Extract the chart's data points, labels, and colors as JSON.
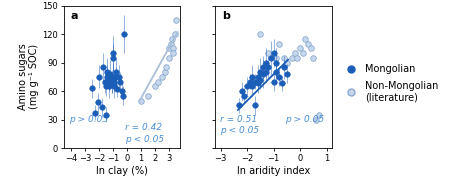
{
  "panel_a": {
    "mongolian_x": [
      -2.5,
      -2.3,
      -2.1,
      -2.0,
      -1.8,
      -1.7,
      -1.6,
      -1.5,
      -1.5,
      -1.4,
      -1.4,
      -1.3,
      -1.3,
      -1.2,
      -1.2,
      -1.1,
      -1.1,
      -1.0,
      -1.0,
      -1.0,
      -0.9,
      -0.9,
      -0.8,
      -0.8,
      -0.7,
      -0.6,
      -0.5,
      -0.4,
      -0.3,
      -0.2
    ],
    "mongolian_y": [
      63,
      37,
      48,
      75,
      43,
      85,
      70,
      65,
      35,
      75,
      80,
      70,
      65,
      78,
      72,
      70,
      68,
      95,
      100,
      75,
      70,
      65,
      80,
      75,
      62,
      75,
      70,
      60,
      55,
      120
    ],
    "mongolian_xerr": [
      0.15,
      0.12,
      0.15,
      0.12,
      0.15,
      0.1,
      0.15,
      0.12,
      0.12,
      0.1,
      0.12,
      0.1,
      0.15,
      0.12,
      0.15,
      0.1,
      0.15,
      0.12,
      0.18,
      0.12,
      0.1,
      0.15,
      0.12,
      0.1,
      0.12,
      0.15,
      0.1,
      0.12,
      0.1,
      0.18
    ],
    "mongolian_yerr": [
      10,
      8,
      10,
      12,
      10,
      15,
      12,
      10,
      8,
      12,
      15,
      10,
      12,
      15,
      10,
      12,
      10,
      15,
      18,
      12,
      10,
      12,
      15,
      10,
      8,
      12,
      10,
      8,
      10,
      20
    ],
    "nonmongolian_x": [
      1.0,
      1.5,
      2.0,
      2.2,
      2.5,
      2.7,
      2.8,
      3.0,
      3.0,
      3.1,
      3.2,
      3.3,
      3.3,
      3.4,
      3.5
    ],
    "nonmongolian_y": [
      50,
      55,
      65,
      70,
      75,
      80,
      85,
      95,
      105,
      110,
      115,
      105,
      100,
      120,
      135
    ],
    "trend_x": [
      0.9,
      3.6
    ],
    "trend_y": [
      50,
      122
    ],
    "xlim": [
      -4.5,
      3.8
    ],
    "ylim": [
      0,
      150
    ],
    "xticks": [
      -4,
      -3,
      -2,
      -1,
      0,
      1,
      2,
      3
    ],
    "yticks": [
      0,
      30,
      60,
      90,
      120,
      150
    ],
    "xlabel": "ln clay (%)",
    "panel_label": "a",
    "stat_mongolian": "p > 0.05",
    "stat_nonmongolian_r": "r = 0.42",
    "stat_nonmongolian_p": "p < 0.05"
  },
  "panel_b": {
    "mongolian_x": [
      -2.3,
      -2.2,
      -2.1,
      -2.0,
      -1.9,
      -1.8,
      -1.8,
      -1.7,
      -1.7,
      -1.6,
      -1.6,
      -1.5,
      -1.5,
      -1.4,
      -1.4,
      -1.3,
      -1.3,
      -1.2,
      -1.1,
      -1.0,
      -1.0,
      -0.9,
      -0.9,
      -0.8,
      -0.7,
      -0.6,
      -0.5
    ],
    "mongolian_y": [
      45,
      60,
      55,
      65,
      70,
      65,
      75,
      70,
      45,
      75,
      68,
      80,
      72,
      85,
      78,
      80,
      90,
      85,
      95,
      100,
      70,
      90,
      80,
      75,
      68,
      85,
      78
    ],
    "mongolian_xerr": [
      0.12,
      0.1,
      0.12,
      0.1,
      0.12,
      0.1,
      0.12,
      0.1,
      0.12,
      0.1,
      0.12,
      0.1,
      0.12,
      0.1,
      0.12,
      0.1,
      0.12,
      0.1,
      0.12,
      0.1,
      0.12,
      0.1,
      0.12,
      0.1,
      0.12,
      0.1,
      0.12
    ],
    "mongolian_yerr": [
      8,
      10,
      8,
      10,
      8,
      10,
      12,
      8,
      10,
      12,
      10,
      15,
      10,
      12,
      15,
      12,
      15,
      12,
      18,
      15,
      10,
      15,
      12,
      10,
      8,
      12,
      10
    ],
    "nonmongolian_x": [
      -1.5,
      -1.2,
      -0.9,
      -0.8,
      -0.6,
      -0.5,
      -0.3,
      -0.2,
      -0.1,
      0.0,
      0.1,
      0.2,
      0.3,
      0.4,
      0.5,
      0.6,
      0.7
    ],
    "nonmongolian_y": [
      120,
      100,
      95,
      110,
      95,
      90,
      95,
      100,
      95,
      105,
      100,
      115,
      110,
      105,
      95,
      30,
      35
    ],
    "trend_x": [
      -2.35,
      -0.45
    ],
    "trend_y": [
      40,
      93
    ],
    "xlim": [
      -3.2,
      1.2
    ],
    "ylim": [
      0,
      150
    ],
    "xticks": [
      -3,
      -2,
      -1,
      0,
      1
    ],
    "yticks": [
      0,
      30,
      60,
      90,
      120,
      150
    ],
    "xlabel": "ln aridity index",
    "panel_label": "b",
    "stat_mongolian_r": "r = 0.51",
    "stat_mongolian_p": "p < 0.05",
    "stat_nonmongolian": "p > 0.05"
  },
  "ylabel": "Amino sugars\n(mg g⁻¹ SOC)",
  "mongolian_color": "#1b5eb8",
  "nonmongolian_facecolor": "#c8d8ec",
  "nonmongolian_edgecolor": "#8aaad0",
  "trend_color_a": "#aabfd8",
  "trend_color_b": "#1b5eb8",
  "stat_color": "#4a8fd4",
  "legend_mongolian": "Mongolian",
  "legend_nonmongolian": "Non-Mongolian\n(literature)",
  "axis_fontsize": 7,
  "tick_fontsize": 6,
  "stat_fontsize": 6.5,
  "panel_label_fontsize": 8
}
